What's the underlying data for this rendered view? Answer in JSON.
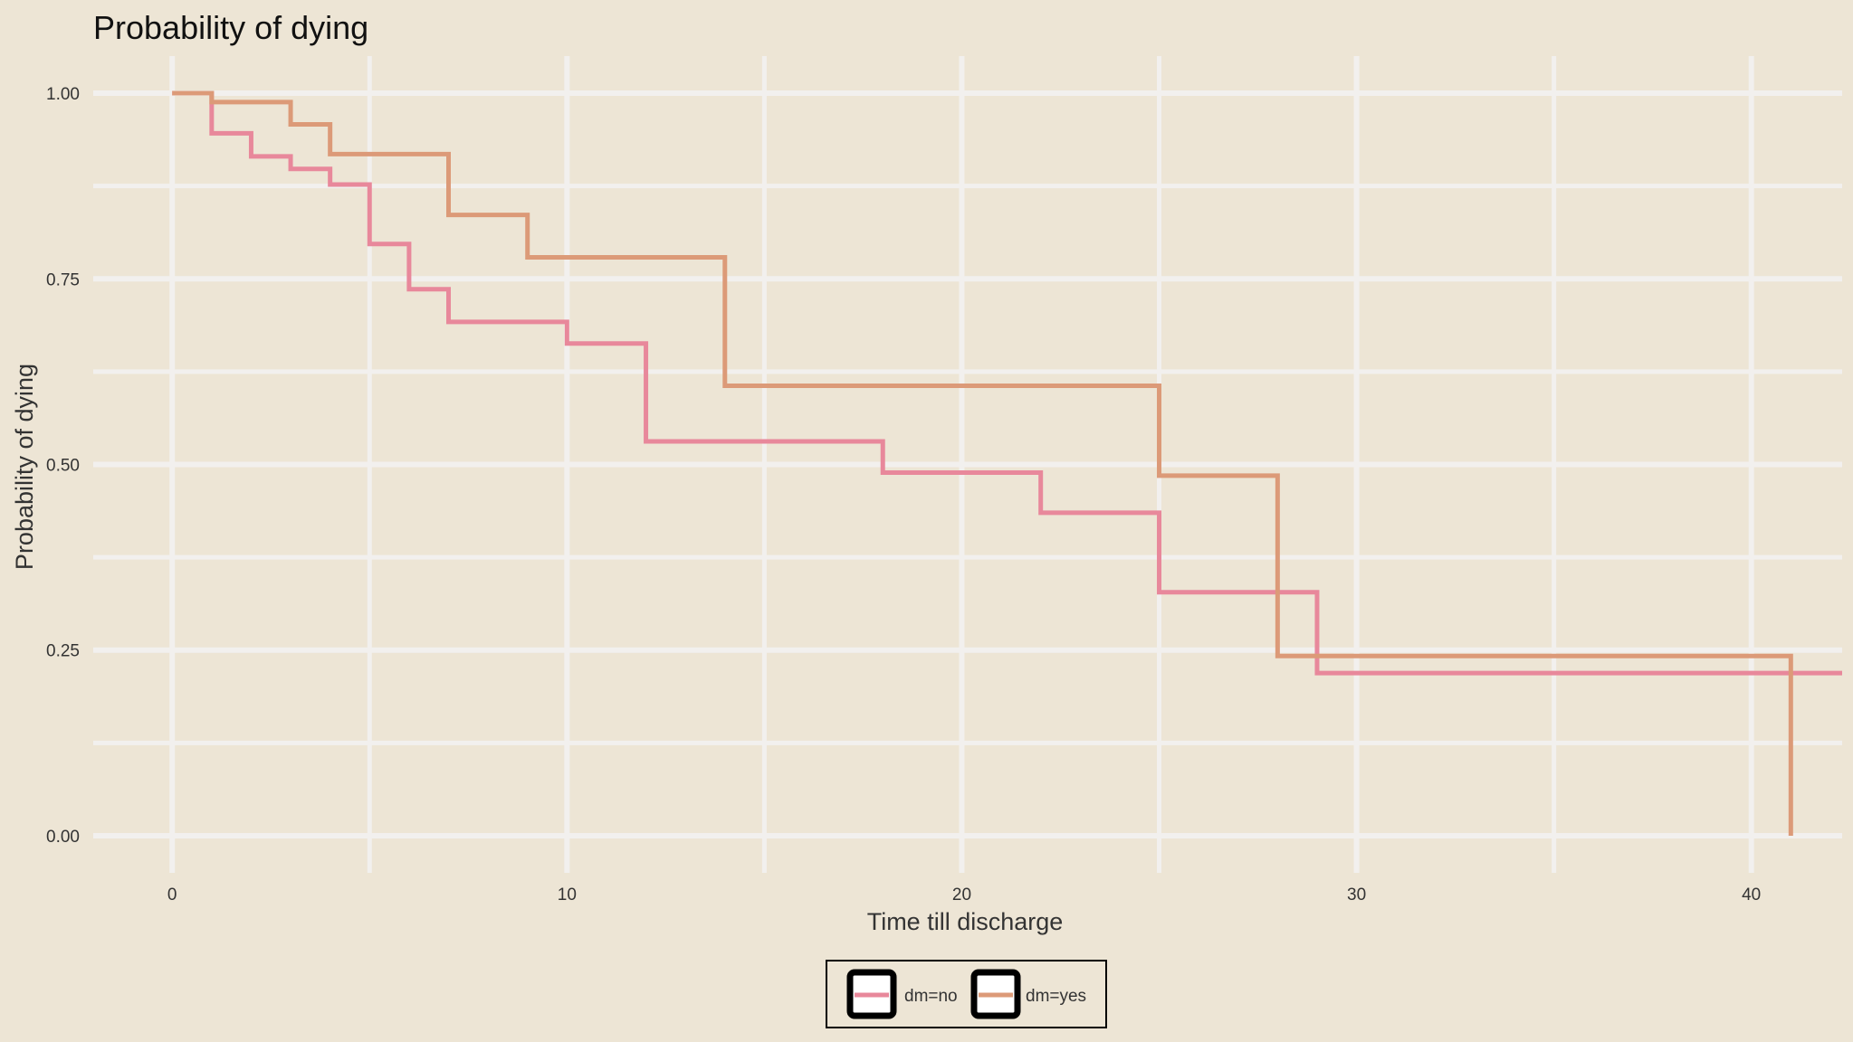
{
  "chart_data": {
    "type": "line",
    "step": true,
    "title": "Probability of dying",
    "xlabel": "Time till discharge",
    "ylabel": "Probability of dying",
    "xlim": [
      -2,
      42.3
    ],
    "ylim": [
      -0.05,
      1.05
    ],
    "x_ticks": [
      0,
      10,
      20,
      30,
      40
    ],
    "x_tick_labels": [
      "0",
      "10",
      "20",
      "30",
      "40"
    ],
    "y_ticks": [
      0,
      0.25,
      0.5,
      0.75,
      1.0
    ],
    "y_tick_labels": [
      "0.00",
      "0.25",
      "0.50",
      "0.75",
      "1.00"
    ],
    "grid": true,
    "legend_position": "bottom",
    "colors": {
      "background": "#ede5d5",
      "grid": "#f2f0ee",
      "legend_border": "#000000"
    },
    "series": [
      {
        "name": "dm=no",
        "color": "#e8889b",
        "x": [
          0,
          1,
          2,
          3,
          4,
          5,
          6,
          7,
          10,
          12,
          18,
          22,
          25,
          29,
          42.3
        ],
        "y": [
          1.0,
          0.946,
          0.915,
          0.898,
          0.877,
          0.797,
          0.736,
          0.692,
          0.663,
          0.531,
          0.489,
          0.435,
          0.328,
          0.219,
          0.219
        ]
      },
      {
        "name": "dm=yes",
        "color": "#dc9a78",
        "x": [
          0,
          1,
          3,
          4,
          7,
          9,
          14,
          25,
          28,
          41,
          41
        ],
        "y": [
          1.0,
          0.988,
          0.958,
          0.918,
          0.836,
          0.779,
          0.606,
          0.485,
          0.242,
          0.242,
          0.0
        ]
      }
    ]
  }
}
